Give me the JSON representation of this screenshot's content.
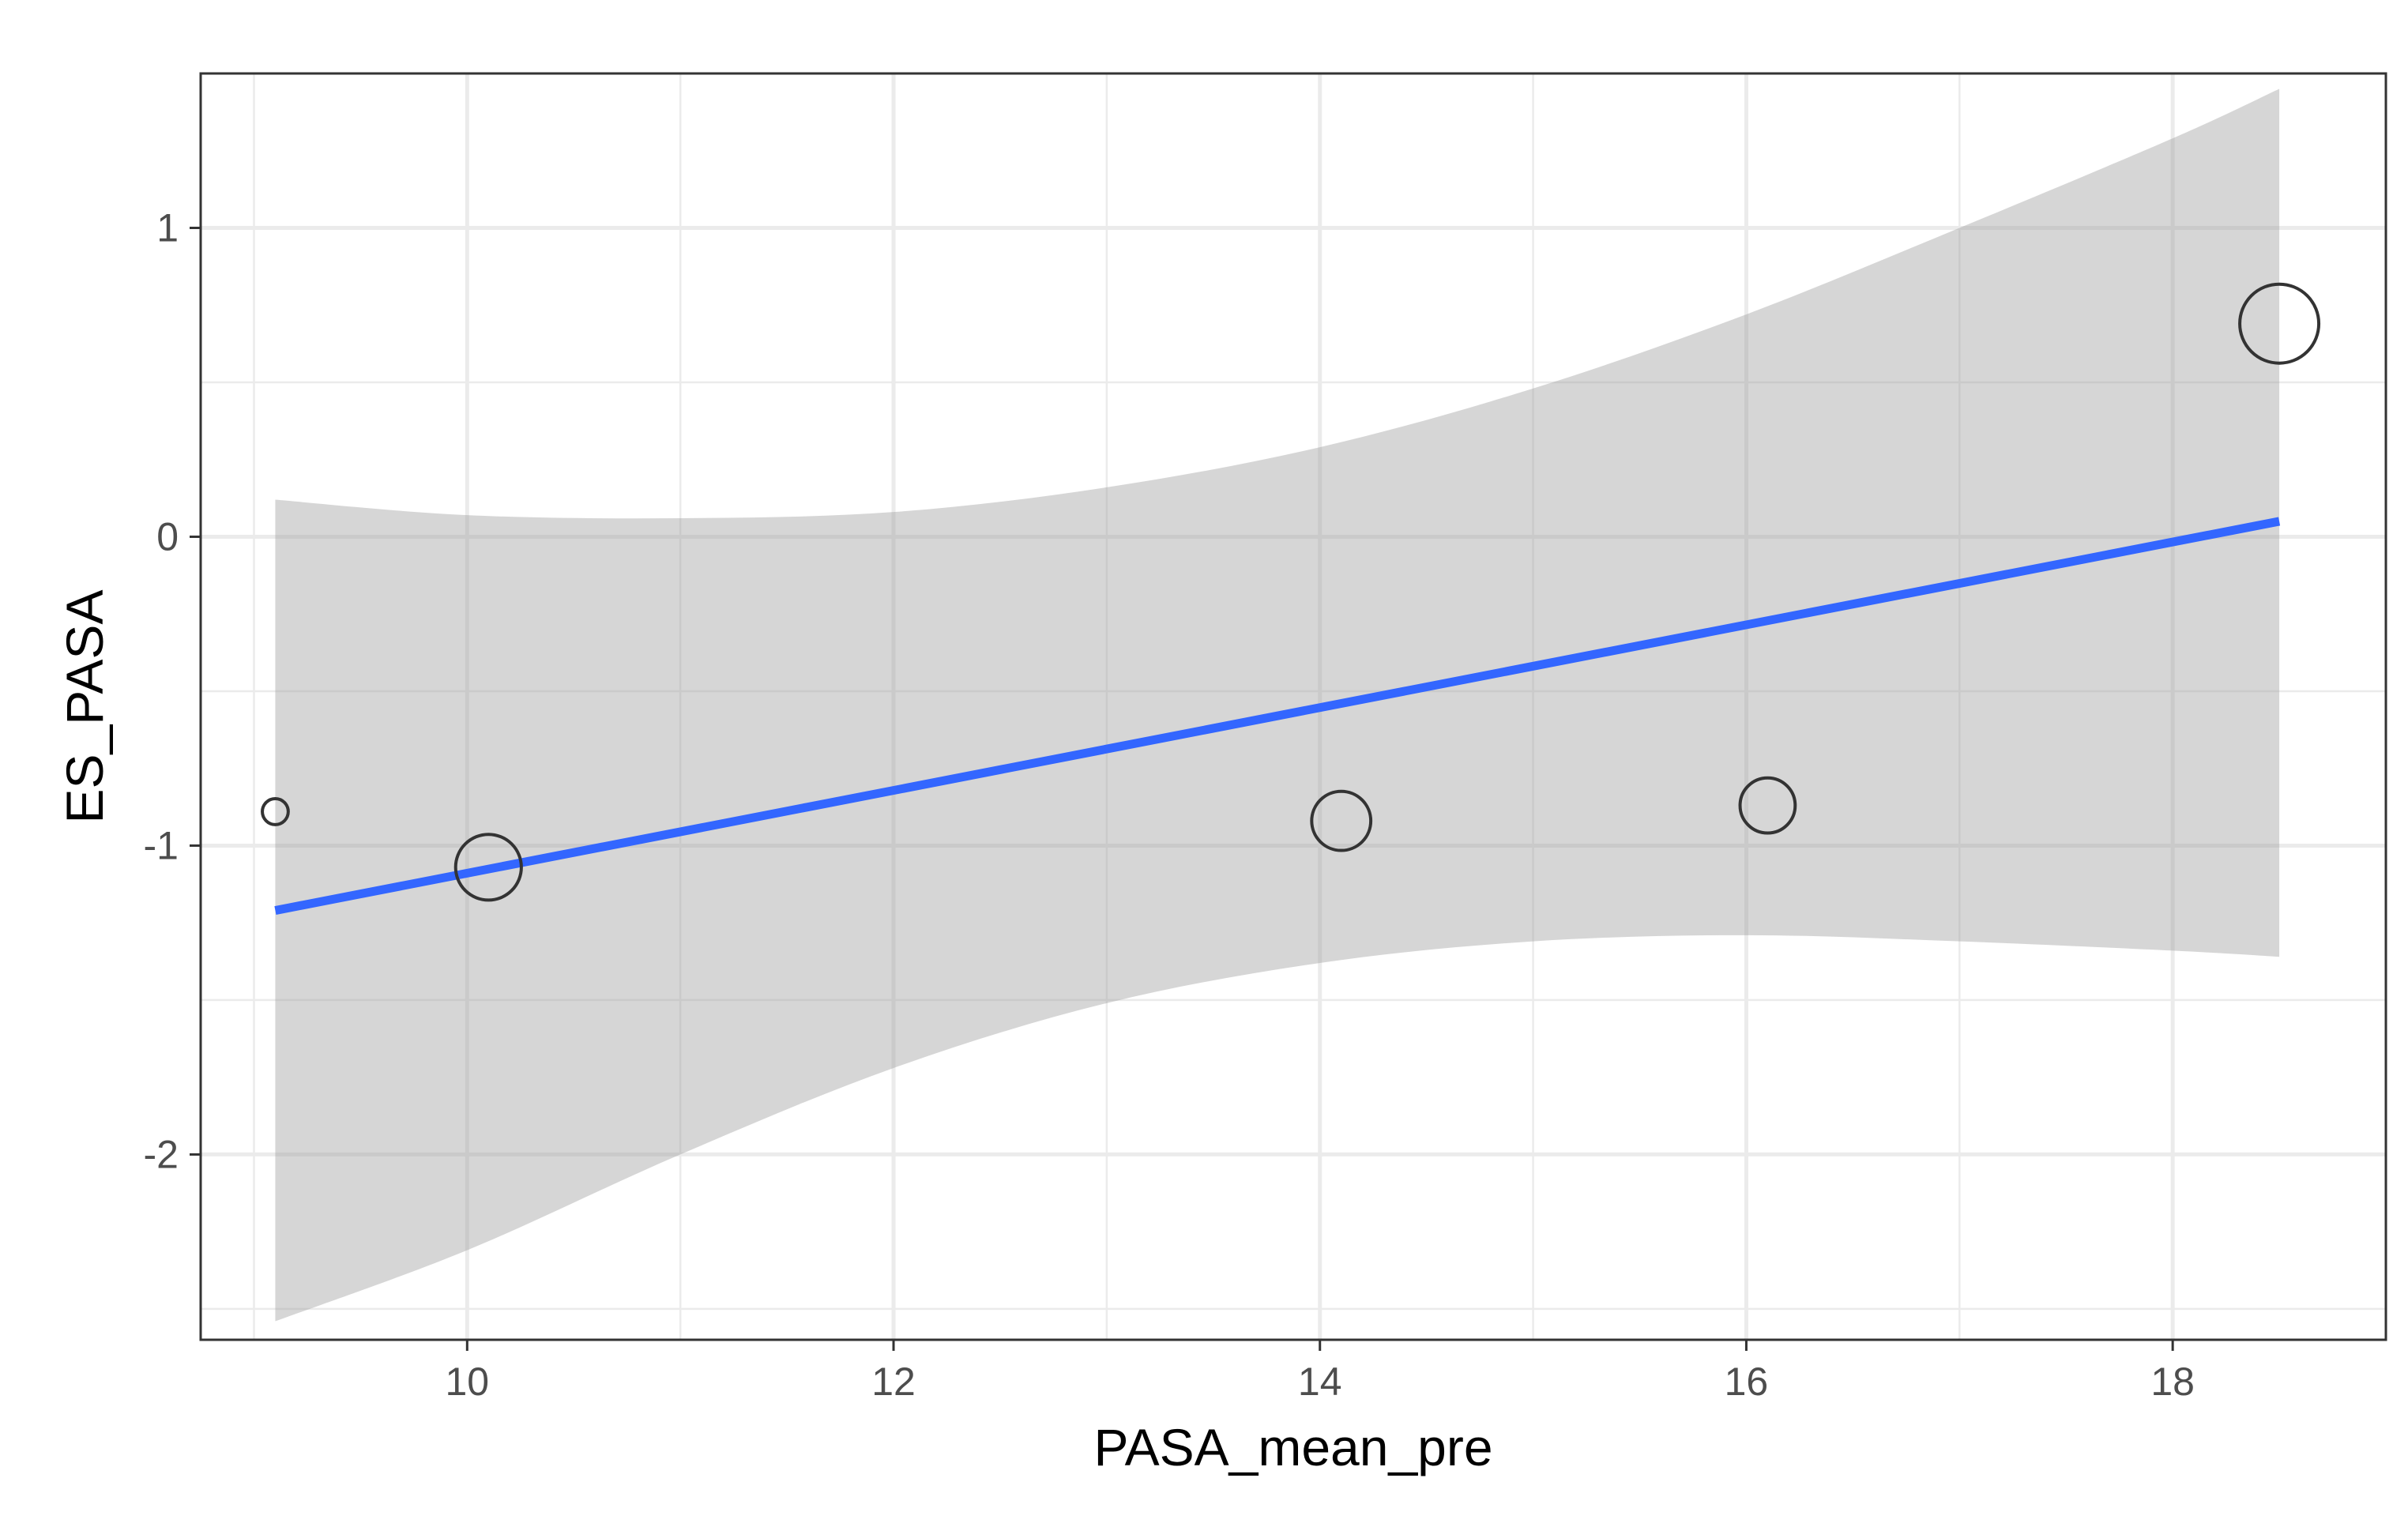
{
  "chart_data": {
    "type": "scatter",
    "title": "",
    "xlabel": "PASA_mean_pre",
    "ylabel": "ES_PASA",
    "xlim": [
      8.75,
      19.0
    ],
    "ylim": [
      -2.6,
      1.5
    ],
    "x_ticks": [
      10,
      12,
      14,
      16,
      18
    ],
    "x_tick_labels": [
      "10",
      "12",
      "14",
      "16",
      "18"
    ],
    "y_ticks": [
      -2,
      -1,
      0,
      1
    ],
    "y_tick_labels": [
      "-2",
      "-1",
      "0",
      "1"
    ],
    "grid": true,
    "points": [
      {
        "x": 9.1,
        "y": -0.89,
        "size": 1
      },
      {
        "x": 10.1,
        "y": -1.07,
        "size": 4
      },
      {
        "x": 14.1,
        "y": -0.92,
        "size": 3.5
      },
      {
        "x": 16.1,
        "y": -0.87,
        "size": 3.2
      },
      {
        "x": 18.5,
        "y": 0.69,
        "size": 5
      }
    ],
    "fit_line": {
      "method": "lm",
      "x": [
        9.1,
        18.5
      ],
      "y": [
        -1.21,
        0.05
      ]
    },
    "confidence_band": {
      "x": [
        9.1,
        10,
        11,
        12,
        13,
        14,
        15,
        16,
        17,
        18,
        18.5
      ],
      "upper": [
        0.12,
        0.07,
        0.06,
        0.08,
        0.16,
        0.29,
        0.48,
        0.72,
        1.0,
        1.29,
        1.45
      ],
      "lower": [
        -2.54,
        -2.31,
        -2.0,
        -1.72,
        -1.51,
        -1.38,
        -1.31,
        -1.29,
        -1.31,
        -1.34,
        -1.36
      ]
    },
    "colors": {
      "panel_background": "#ffffff",
      "grid": "#ebebeb",
      "panel_border": "#333333",
      "line": "#3366ff",
      "band": "#999999",
      "point_stroke": "#333333"
    }
  }
}
